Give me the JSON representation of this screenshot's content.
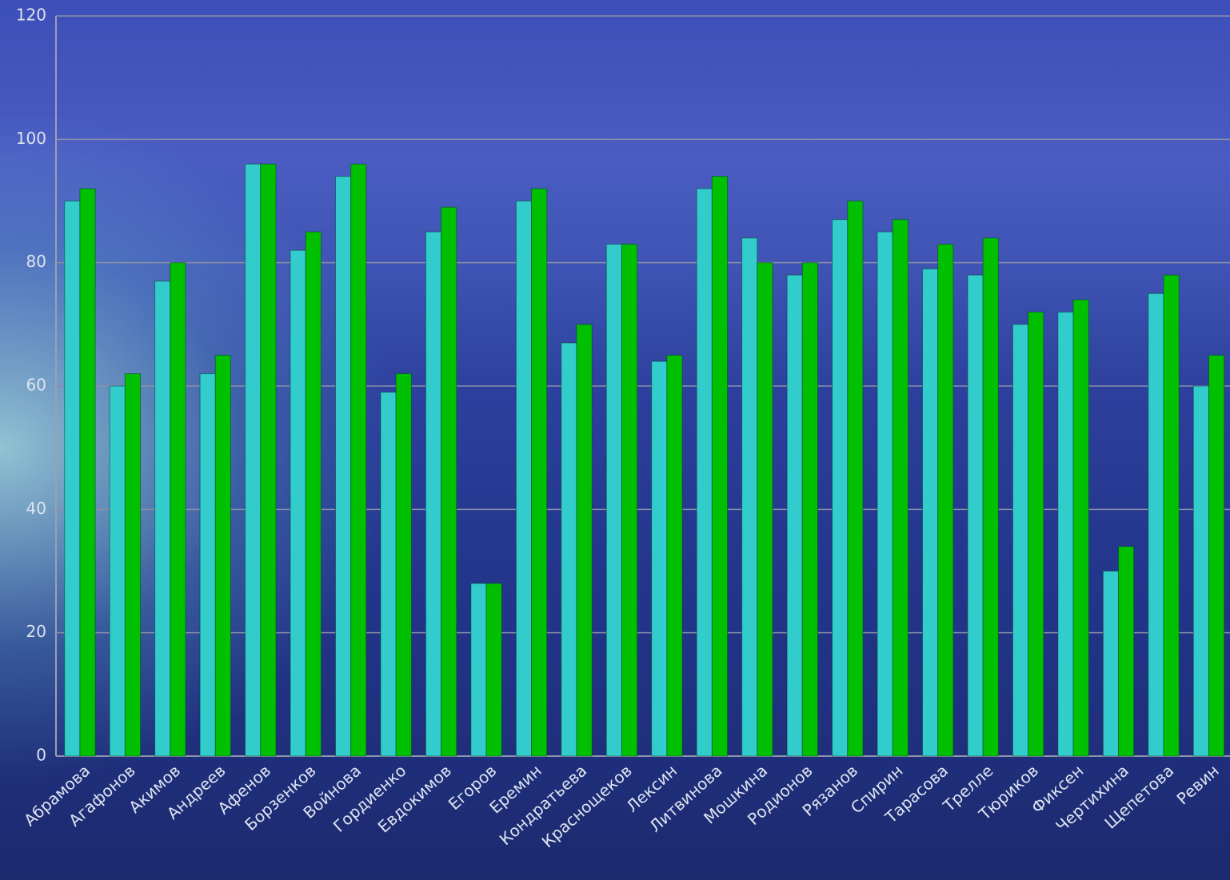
{
  "chart_data": {
    "type": "bar",
    "categories": [
      "Абрамова",
      "Агафонов",
      "Акимов",
      "Андреев",
      "Афенов",
      "Борзенков",
      "Войнова",
      "Гордиенко",
      "Евдокимов",
      "Егоров",
      "Еремин",
      "Кондратьева",
      "Краснощеков",
      "Лексин",
      "Литвинова",
      "Мошкина",
      "Родионов",
      "Рязанов",
      "Спирин",
      "Тарасова",
      "Трелле",
      "Тюриков",
      "Фиксен",
      "Чертихина",
      "Щепетова",
      "Ревин"
    ],
    "series": [
      {
        "color": "#33cccc",
        "values": [
          90,
          60,
          77,
          62,
          96,
          82,
          94,
          59,
          85,
          28,
          90,
          67,
          83,
          64,
          92,
          84,
          78,
          87,
          85,
          79,
          78,
          70,
          72,
          30,
          75,
          60
        ]
      },
      {
        "color": "#00c000",
        "values": [
          92,
          62,
          80,
          65,
          96,
          85,
          96,
          62,
          89,
          28,
          92,
          70,
          83,
          65,
          94,
          80,
          80,
          90,
          87,
          83,
          84,
          72,
          74,
          34,
          78,
          65
        ]
      }
    ],
    "ylim": [
      0,
      120
    ],
    "yticks": [
      0,
      20,
      40,
      60,
      80,
      100,
      120
    ],
    "grid": true
  }
}
